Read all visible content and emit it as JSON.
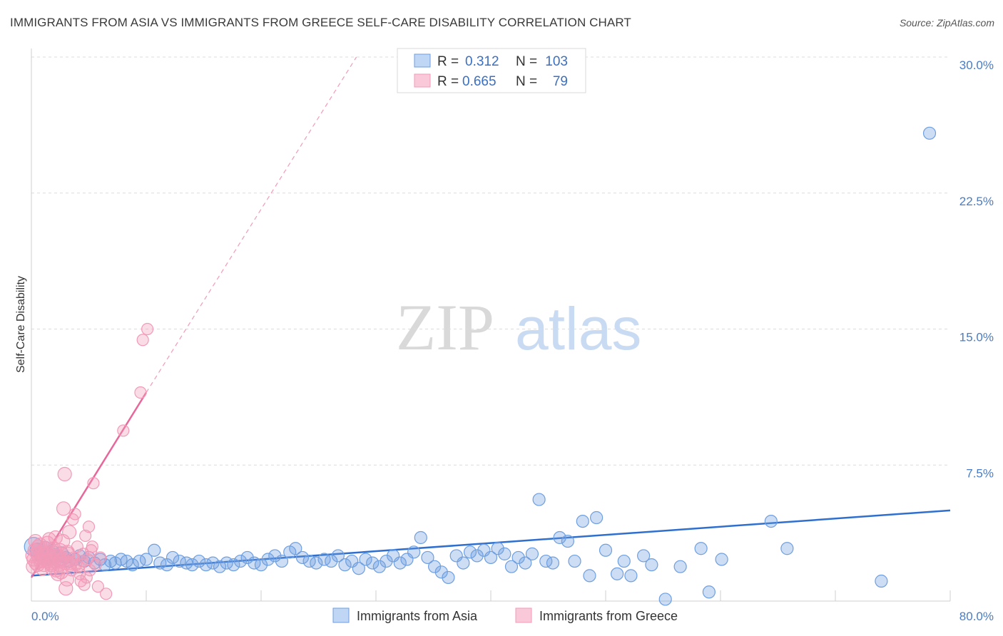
{
  "title": "IMMIGRANTS FROM ASIA VS IMMIGRANTS FROM GREECE SELF-CARE DISABILITY CORRELATION CHART",
  "source": "Source: ZipAtlas.com",
  "watermark": {
    "zip": "ZIP",
    "atlas": "atlas"
  },
  "colors": {
    "asia": "#6e9fe0",
    "asia_line": "#2f6fce",
    "greece": "#f29ab8",
    "greece_line": "#e8679a"
  },
  "legend": {
    "r_label": "R =",
    "n_label": "N =",
    "asia": {
      "r": "0.312",
      "n": "103"
    },
    "greece": {
      "r": "0.665",
      "n": "79"
    }
  },
  "chart_data": {
    "type": "scatter",
    "title": "IMMIGRANTS FROM ASIA VS IMMIGRANTS FROM GREECE SELF-CARE DISABILITY CORRELATION CHART",
    "xlabel": "",
    "ylabel": "Self-Care Disability",
    "xlim": [
      0,
      80
    ],
    "ylim": [
      0,
      30
    ],
    "x_tick_labels": [
      {
        "v": 0,
        "label": "0.0%"
      },
      {
        "v": 80,
        "label": "80.0%"
      }
    ],
    "y_ticks": [
      {
        "v": 7.5,
        "label": "7.5%"
      },
      {
        "v": 15,
        "label": "15.0%"
      },
      {
        "v": 22.5,
        "label": "22.5%"
      },
      {
        "v": 30,
        "label": "30.0%"
      }
    ],
    "series": [
      {
        "name": "Immigrants from Asia",
        "r": 0.312,
        "n": 103,
        "trend": [
          [
            0,
            1.4
          ],
          [
            80,
            5.0
          ]
        ],
        "points": [
          [
            0.2,
            3.0
          ],
          [
            0.5,
            2.8
          ],
          [
            0.8,
            2.6
          ],
          [
            1.0,
            2.5
          ],
          [
            1.2,
            2.9
          ],
          [
            1.5,
            2.4
          ],
          [
            1.8,
            2.7
          ],
          [
            2.0,
            2.5
          ],
          [
            2.3,
            2.3
          ],
          [
            2.6,
            2.6
          ],
          [
            3.0,
            2.4
          ],
          [
            3.3,
            2.2
          ],
          [
            3.8,
            2.3
          ],
          [
            4.2,
            2.5
          ],
          [
            4.6,
            2.2
          ],
          [
            5.0,
            2.4
          ],
          [
            5.5,
            2.1
          ],
          [
            6.0,
            2.3
          ],
          [
            6.4,
            2.0
          ],
          [
            6.9,
            2.2
          ],
          [
            7.3,
            2.1
          ],
          [
            7.8,
            2.3
          ],
          [
            8.3,
            2.2
          ],
          [
            8.8,
            2.0
          ],
          [
            9.4,
            2.2
          ],
          [
            10.0,
            2.3
          ],
          [
            10.7,
            2.8
          ],
          [
            11.2,
            2.1
          ],
          [
            11.8,
            2.0
          ],
          [
            12.3,
            2.4
          ],
          [
            12.9,
            2.2
          ],
          [
            13.5,
            2.1
          ],
          [
            14.0,
            2.0
          ],
          [
            14.6,
            2.2
          ],
          [
            15.2,
            2.0
          ],
          [
            15.8,
            2.1
          ],
          [
            16.4,
            1.9
          ],
          [
            17.0,
            2.1
          ],
          [
            17.6,
            2.0
          ],
          [
            18.2,
            2.2
          ],
          [
            18.8,
            2.4
          ],
          [
            19.4,
            2.1
          ],
          [
            20.0,
            2.0
          ],
          [
            20.6,
            2.3
          ],
          [
            21.2,
            2.5
          ],
          [
            21.8,
            2.2
          ],
          [
            22.5,
            2.7
          ],
          [
            23.0,
            2.9
          ],
          [
            23.6,
            2.4
          ],
          [
            24.2,
            2.2
          ],
          [
            24.8,
            2.1
          ],
          [
            25.5,
            2.3
          ],
          [
            26.1,
            2.2
          ],
          [
            26.7,
            2.5
          ],
          [
            27.3,
            2.0
          ],
          [
            27.9,
            2.2
          ],
          [
            28.5,
            1.8
          ],
          [
            29.1,
            2.3
          ],
          [
            29.7,
            2.1
          ],
          [
            30.3,
            1.9
          ],
          [
            30.9,
            2.2
          ],
          [
            31.5,
            2.5
          ],
          [
            32.1,
            2.1
          ],
          [
            32.7,
            2.3
          ],
          [
            33.3,
            2.7
          ],
          [
            33.9,
            3.5
          ],
          [
            34.5,
            2.4
          ],
          [
            35.1,
            1.9
          ],
          [
            35.7,
            1.6
          ],
          [
            36.3,
            1.3
          ],
          [
            37.0,
            2.5
          ],
          [
            37.6,
            2.1
          ],
          [
            38.2,
            2.7
          ],
          [
            38.8,
            2.5
          ],
          [
            39.4,
            2.8
          ],
          [
            40.0,
            2.4
          ],
          [
            40.6,
            2.9
          ],
          [
            41.2,
            2.6
          ],
          [
            41.8,
            1.9
          ],
          [
            42.4,
            2.4
          ],
          [
            43.0,
            2.1
          ],
          [
            43.6,
            2.6
          ],
          [
            44.2,
            5.6
          ],
          [
            44.8,
            2.2
          ],
          [
            45.4,
            2.1
          ],
          [
            46.0,
            3.5
          ],
          [
            46.7,
            3.3
          ],
          [
            47.3,
            2.2
          ],
          [
            48.0,
            4.4
          ],
          [
            48.6,
            1.4
          ],
          [
            49.2,
            4.6
          ],
          [
            50.0,
            2.8
          ],
          [
            51.0,
            1.5
          ],
          [
            51.6,
            2.2
          ],
          [
            52.2,
            1.4
          ],
          [
            53.3,
            2.5
          ],
          [
            54.0,
            2.0
          ],
          [
            55.2,
            0.1
          ],
          [
            56.5,
            1.9
          ],
          [
            58.3,
            2.9
          ],
          [
            59.0,
            0.5
          ],
          [
            60.1,
            2.3
          ],
          [
            64.4,
            4.4
          ],
          [
            65.8,
            2.9
          ],
          [
            74.0,
            1.1
          ],
          [
            78.2,
            25.8
          ]
        ]
      },
      {
        "name": "Immigrants from Greece",
        "r": 0.665,
        "n": 79,
        "trend": [
          [
            0,
            1.3
          ],
          [
            10,
            11.5
          ]
        ],
        "trend_dashed": [
          [
            10,
            11.5
          ],
          [
            28.3,
            30
          ]
        ],
        "points": [
          [
            0.1,
            2.5
          ],
          [
            0.2,
            2.3
          ],
          [
            0.3,
            2.8
          ],
          [
            0.4,
            2.1
          ],
          [
            0.5,
            2.6
          ],
          [
            0.6,
            3.0
          ],
          [
            0.7,
            2.4
          ],
          [
            0.8,
            2.2
          ],
          [
            0.9,
            2.7
          ],
          [
            1.0,
            2.5
          ],
          [
            1.1,
            2.0
          ],
          [
            1.2,
            2.9
          ],
          [
            1.3,
            2.3
          ],
          [
            1.4,
            3.2
          ],
          [
            1.5,
            2.6
          ],
          [
            1.6,
            2.1
          ],
          [
            1.7,
            2.4
          ],
          [
            1.8,
            1.8
          ],
          [
            1.9,
            2.7
          ],
          [
            2.0,
            2.2
          ],
          [
            2.1,
            3.5
          ],
          [
            2.2,
            2.5
          ],
          [
            2.3,
            1.5
          ],
          [
            2.4,
            2.0
          ],
          [
            2.5,
            2.8
          ],
          [
            2.6,
            1.6
          ],
          [
            2.7,
            2.3
          ],
          [
            2.8,
            5.1
          ],
          [
            2.9,
            7.0
          ],
          [
            3.0,
            0.7
          ],
          [
            3.1,
            1.2
          ],
          [
            3.2,
            2.6
          ],
          [
            3.3,
            3.8
          ],
          [
            3.4,
            2.1
          ],
          [
            3.5,
            1.7
          ],
          [
            3.6,
            4.5
          ],
          [
            3.7,
            2.4
          ],
          [
            3.8,
            4.8
          ],
          [
            3.9,
            2.0
          ],
          [
            4.0,
            3.0
          ],
          [
            4.1,
            1.9
          ],
          [
            4.2,
            1.5
          ],
          [
            4.3,
            1.1
          ],
          [
            4.4,
            2.2
          ],
          [
            4.5,
            2.6
          ],
          [
            4.6,
            0.9
          ],
          [
            4.7,
            3.6
          ],
          [
            4.8,
            1.3
          ],
          [
            4.9,
            2.3
          ],
          [
            5.0,
            4.1
          ],
          [
            5.1,
            1.7
          ],
          [
            5.2,
            2.8
          ],
          [
            5.3,
            3.0
          ],
          [
            5.4,
            6.5
          ],
          [
            5.6,
            2.0
          ],
          [
            5.8,
            0.8
          ],
          [
            6.0,
            2.4
          ],
          [
            6.5,
            0.4
          ],
          [
            0.15,
            1.9
          ],
          [
            0.35,
            3.3
          ],
          [
            0.55,
            2.0
          ],
          [
            0.75,
            3.1
          ],
          [
            0.95,
            1.8
          ],
          [
            1.15,
            2.6
          ],
          [
            1.35,
            2.2
          ],
          [
            1.55,
            3.4
          ],
          [
            1.75,
            2.0
          ],
          [
            1.95,
            2.9
          ],
          [
            2.15,
            1.7
          ],
          [
            2.35,
            2.5
          ],
          [
            2.55,
            2.2
          ],
          [
            2.75,
            3.3
          ],
          [
            2.95,
            2.1
          ],
          [
            3.15,
            2.7
          ],
          [
            3.35,
            2.0
          ],
          [
            8.0,
            9.4
          ],
          [
            9.5,
            11.5
          ],
          [
            10.1,
            15.0
          ],
          [
            9.7,
            14.4
          ]
        ]
      }
    ]
  },
  "bottom_legend": {
    "asia": "Immigrants from Asia",
    "greece": "Immigrants from Greece"
  }
}
